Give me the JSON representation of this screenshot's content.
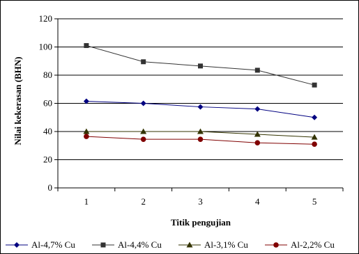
{
  "chart_data": {
    "type": "line",
    "xlabel": "Titik  pengujian",
    "ylabel": "Nilai kekerasan (BHN)",
    "categories": [
      "1",
      "2",
      "3",
      "4",
      "5"
    ],
    "ylim": [
      0,
      120
    ],
    "yticks": [
      "0",
      "20",
      "40",
      "60",
      "80",
      "100",
      "120"
    ],
    "grid": "horizontal",
    "legend_position": "bottom",
    "series": [
      {
        "name": "Al-4,7% Cu",
        "values": [
          61.5,
          60,
          57.5,
          56,
          50
        ],
        "color": "#000080",
        "marker": "diamond"
      },
      {
        "name": "Al-4,4% Cu",
        "values": [
          101,
          89.5,
          86.5,
          83.5,
          73
        ],
        "color": "#333333",
        "marker": "square"
      },
      {
        "name": "Al-3,1% Cu",
        "values": [
          40,
          40,
          40,
          38,
          36
        ],
        "color": "#333300",
        "marker": "triangle"
      },
      {
        "name": "Al-2,2% Cu",
        "values": [
          36.5,
          34.5,
          34.5,
          32,
          31
        ],
        "color": "#800000",
        "marker": "circle"
      }
    ]
  }
}
